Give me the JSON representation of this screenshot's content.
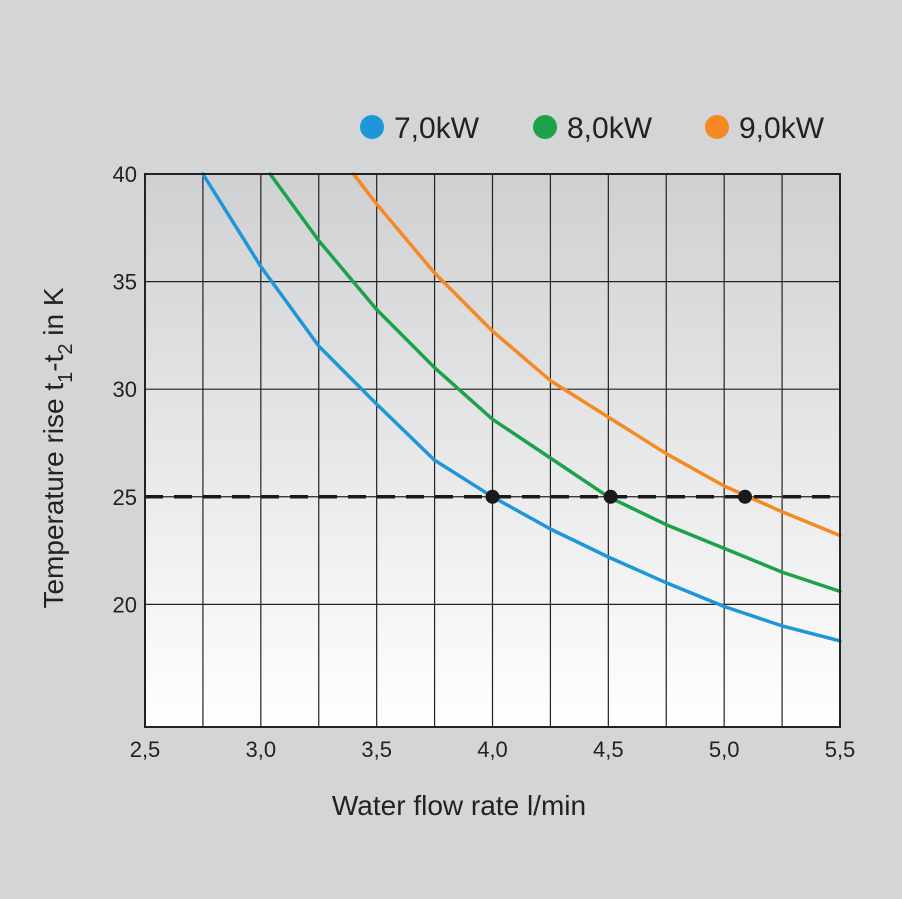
{
  "chart_data": {
    "type": "line",
    "title": "",
    "xlabel": "Water flow rate l/min",
    "ylabel_parts": [
      "Temperature rise t",
      "1",
      "-t",
      "2",
      " in K"
    ],
    "x_ticks": [
      "2,5",
      "3,0",
      "3,5",
      "4,0",
      "4,5",
      "5,0",
      "5,5"
    ],
    "y_ticks": [
      "20",
      "25",
      "30",
      "35",
      "40"
    ],
    "xlim": [
      2.5,
      5.5
    ],
    "ylim": [
      14.3,
      40
    ],
    "grid": true,
    "legend_position": "top-right",
    "reference_line": {
      "y": 25,
      "style": "dashed"
    },
    "series": [
      {
        "name": "7,0kW",
        "color": "#1e96d9",
        "power_kw": 7.0,
        "x": [
          2.75,
          3.0,
          3.25,
          3.5,
          3.75,
          4.0,
          4.25,
          4.5,
          4.75,
          5.0,
          5.25,
          5.5
        ],
        "y": [
          40.0,
          35.7,
          32.0,
          29.3,
          26.7,
          25.0,
          23.5,
          22.2,
          21.0,
          19.9,
          19.0,
          18.3
        ]
      },
      {
        "name": "8,0kW",
        "color": "#1ba24a",
        "power_kw": 8.0,
        "x": [
          3.04,
          3.25,
          3.5,
          3.75,
          4.0,
          4.25,
          4.5,
          4.75,
          5.0,
          5.25,
          5.5
        ],
        "y": [
          40.0,
          36.9,
          33.7,
          31.0,
          28.6,
          26.8,
          25.0,
          23.7,
          22.6,
          21.5,
          20.6
        ]
      },
      {
        "name": "9,0kW",
        "color": "#f58a24",
        "power_kw": 9.0,
        "x": [
          3.4,
          3.5,
          3.75,
          4.0,
          4.25,
          4.5,
          4.75,
          5.0,
          5.25,
          5.5
        ],
        "y": [
          40.0,
          38.6,
          35.4,
          32.7,
          30.4,
          28.7,
          27.0,
          25.5,
          24.3,
          23.2
        ]
      }
    ],
    "markers": [
      {
        "x": 4.0,
        "y": 25
      },
      {
        "x": 4.51,
        "y": 25
      },
      {
        "x": 5.09,
        "y": 25
      }
    ]
  }
}
